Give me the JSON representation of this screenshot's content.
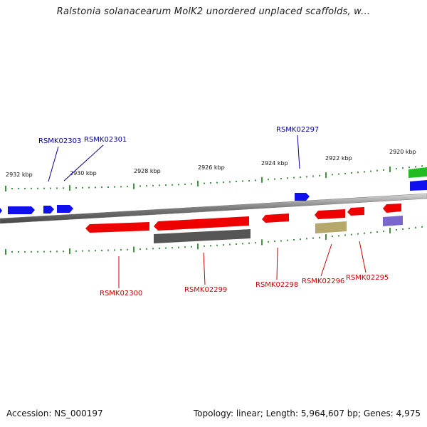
{
  "title": "Ralstonia solanacearum MolK2 unordered unplaced scaffolds, w...",
  "footer": {
    "accession": "Accession: NS_000197",
    "summary": "Topology: linear; Length: 5,964,607 bp; Genes: 4,975"
  },
  "colors": {
    "forward": "#0000ee",
    "reverse": "#ee0000",
    "grey": "#555555",
    "khaki": "#b5a86a",
    "purple": "#7a66cc",
    "green": "#22bb22",
    "tick": "#117711",
    "axis": "#888888",
    "forward_label": "#000099",
    "reverse_label": "#cc0000"
  },
  "scale": {
    "tick_labels": [
      "2932 kbp",
      "2930 kbp",
      "2928 kbp",
      "2926 kbp",
      "2924 kbp",
      "2922 kbp",
      "2920 kbp"
    ]
  },
  "gene_labels": {
    "forward": [
      "RSMK02303",
      "RSMK02301",
      "RSMK02297"
    ],
    "reverse": [
      "RSMK02300",
      "RSMK02299",
      "RSMK02298",
      "RSMK02296",
      "RSMK02295"
    ]
  }
}
